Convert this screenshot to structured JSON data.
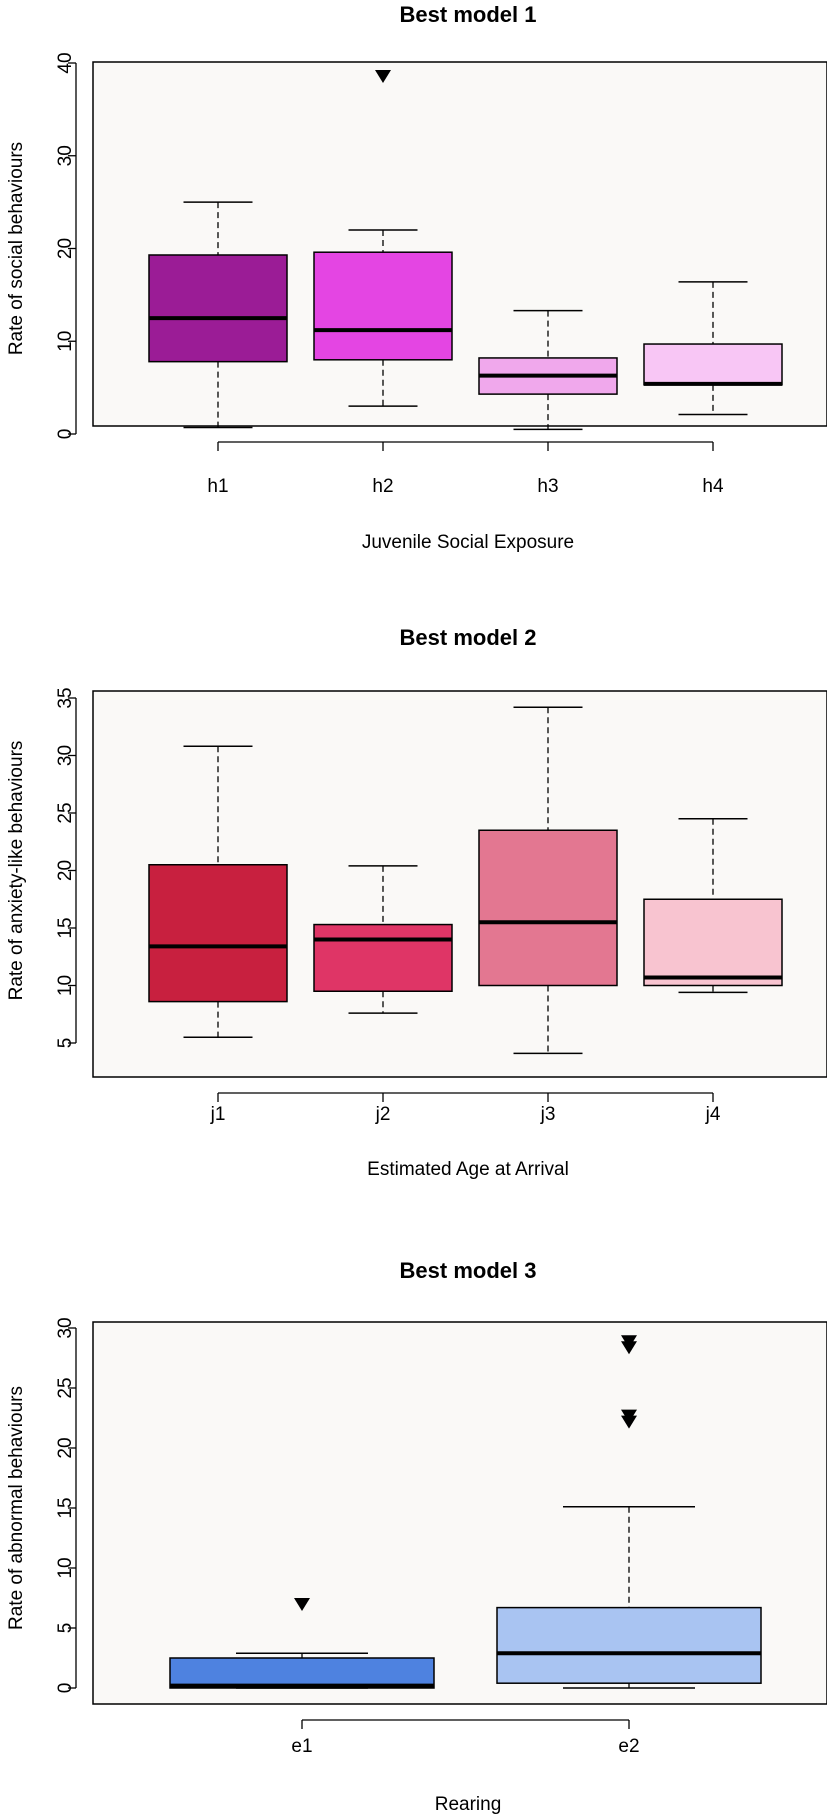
{
  "chart_data": [
    {
      "type": "boxplot",
      "title": "Best model 1",
      "xlabel": "Juvenile Social Exposure",
      "ylabel": "Rate of social behaviours",
      "ylim": [
        0,
        40
      ],
      "yticks": [
        0,
        10,
        20,
        30,
        40
      ],
      "categories": [
        "h1",
        "h2",
        "h3",
        "h4"
      ],
      "colors": [
        "#9b1c96",
        "#e445e3",
        "#f0a8ec",
        "#f8c6f5"
      ],
      "boxes": [
        {
          "lower_whisker": 0.7,
          "q1": 7.8,
          "median": 12.5,
          "q3": 19.3,
          "upper_whisker": 25.0,
          "outliers": []
        },
        {
          "lower_whisker": 3.0,
          "q1": 8.0,
          "median": 11.2,
          "q3": 19.6,
          "upper_whisker": 22.0,
          "outliers": [
            38.6
          ]
        },
        {
          "lower_whisker": 0.5,
          "q1": 4.3,
          "median": 6.3,
          "q3": 8.2,
          "upper_whisker": 13.3,
          "outliers": []
        },
        {
          "lower_whisker": 2.1,
          "q1": 5.3,
          "median": 5.4,
          "q3": 9.7,
          "upper_whisker": 16.4,
          "outliers": []
        }
      ]
    },
    {
      "type": "boxplot",
      "title": "Best model 2",
      "xlabel": "Estimated Age at Arrival",
      "ylabel": "Rate of anxiety-like behaviours",
      "ylim": [
        5,
        35
      ],
      "yticks": [
        5,
        10,
        15,
        20,
        25,
        30,
        35
      ],
      "categories": [
        "j1",
        "j2",
        "j3",
        "j4"
      ],
      "colors": [
        "#c8203f",
        "#df3566",
        "#e37791",
        "#f8c4d0"
      ],
      "boxes": [
        {
          "lower_whisker": 5.5,
          "q1": 8.6,
          "median": 13.4,
          "q3": 20.5,
          "upper_whisker": 30.8,
          "outliers": []
        },
        {
          "lower_whisker": 7.6,
          "q1": 9.5,
          "median": 14.0,
          "q3": 15.3,
          "upper_whisker": 20.4,
          "outliers": []
        },
        {
          "lower_whisker": 4.1,
          "q1": 10.0,
          "median": 15.5,
          "q3": 23.5,
          "upper_whisker": 34.2,
          "outliers": []
        },
        {
          "lower_whisker": 9.4,
          "q1": 10.0,
          "median": 10.7,
          "q3": 17.5,
          "upper_whisker": 24.5,
          "outliers": []
        }
      ]
    },
    {
      "type": "boxplot",
      "title": "Best model 3",
      "xlabel": "Rearing",
      "ylabel": "Rate of abnormal behaviours",
      "ylim": [
        0,
        30
      ],
      "yticks": [
        0,
        5,
        10,
        15,
        20,
        25,
        30
      ],
      "categories": [
        "e1",
        "e2"
      ],
      "colors": [
        "#4e82e0",
        "#a9c4f2"
      ],
      "boxes": [
        {
          "lower_whisker": 0.0,
          "q1": 0.0,
          "median": 0.2,
          "q3": 2.5,
          "upper_whisker": 2.9,
          "outliers": [
            7.0
          ]
        },
        {
          "lower_whisker": 0.0,
          "q1": 0.4,
          "median": 2.9,
          "q3": 6.7,
          "upper_whisker": 15.1,
          "outliers": [
            22.2,
            22.7,
            28.4,
            28.9
          ]
        }
      ]
    }
  ]
}
